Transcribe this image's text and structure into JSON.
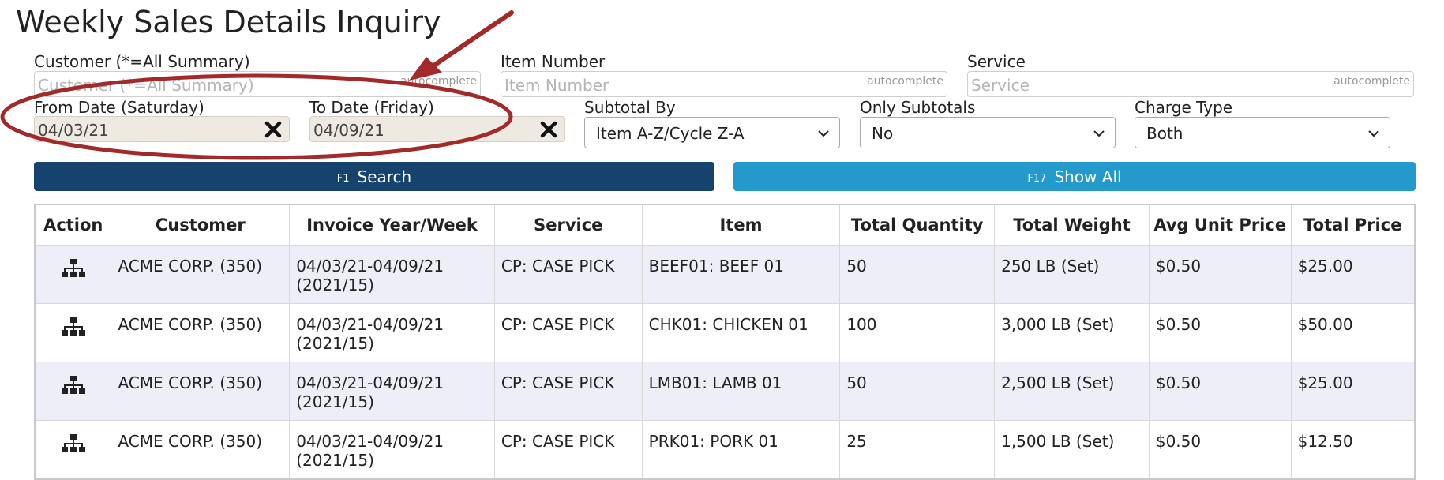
{
  "page": {
    "title": "Weekly Sales Details Inquiry"
  },
  "filters": {
    "customer": {
      "label": "Customer (*=All Summary)",
      "placeholder": "Customer (*=All Summary)",
      "hint": "autocomplete"
    },
    "item_number": {
      "label": "Item Number",
      "placeholder": "Item Number",
      "hint": "autocomplete"
    },
    "service": {
      "label": "Service",
      "placeholder": "Service",
      "hint": "autocomplete"
    },
    "from_date": {
      "label": "From Date (Saturday)",
      "value": "04/03/21"
    },
    "to_date": {
      "label": "To Date (Friday)",
      "value": "04/09/21"
    },
    "subtotal_by": {
      "label": "Subtotal By",
      "value": "Item A-Z/Cycle Z-A"
    },
    "only_subtotals": {
      "label": "Only Subtotals",
      "value": "No"
    },
    "charge_type": {
      "label": "Charge Type",
      "value": "Both"
    }
  },
  "actions": {
    "search": {
      "key": "F1",
      "label": "Search"
    },
    "show_all": {
      "key": "F17",
      "label": "Show All"
    }
  },
  "table": {
    "headers": [
      "Action",
      "Customer",
      "Invoice Year/Week",
      "Service",
      "Item",
      "Total Quantity",
      "Total Weight",
      "Avg Unit Price",
      "Total Price"
    ],
    "rows": [
      {
        "customer": "ACME CORP. (350)",
        "period": "04/03/21-04/09/21",
        "week": "(2021/15)",
        "service": "CP: CASE PICK",
        "item": "BEEF01: BEEF 01",
        "qty": "50",
        "weight": "250 LB (Set)",
        "avg": "$0.50",
        "total": "$25.00"
      },
      {
        "customer": "ACME CORP. (350)",
        "period": "04/03/21-04/09/21",
        "week": "(2021/15)",
        "service": "CP: CASE PICK",
        "item": "CHK01: CHICKEN 01",
        "qty": "100",
        "weight": "3,000 LB (Set)",
        "avg": "$0.50",
        "total": "$50.00"
      },
      {
        "customer": "ACME CORP. (350)",
        "period": "04/03/21-04/09/21",
        "week": "(2021/15)",
        "service": "CP: CASE PICK",
        "item": "LMB01: LAMB 01",
        "qty": "50",
        "weight": "2,500 LB (Set)",
        "avg": "$0.50",
        "total": "$25.00"
      },
      {
        "customer": "ACME CORP. (350)",
        "period": "04/03/21-04/09/21",
        "week": "(2021/15)",
        "service": "CP: CASE PICK",
        "item": "PRK01: PORK 01",
        "qty": "25",
        "weight": "1,500 LB (Set)",
        "avg": "$0.50",
        "total": "$12.50"
      }
    ]
  },
  "icons": {
    "clear": "close-x-icon",
    "row_action": "hierarchy-icon",
    "dropdown": "chevron-down-icon"
  },
  "colors": {
    "search_button": "#16426e",
    "show_all_button": "#2399cc",
    "annotation": "#a32a2a",
    "row_alt": "#eeeef9"
  }
}
